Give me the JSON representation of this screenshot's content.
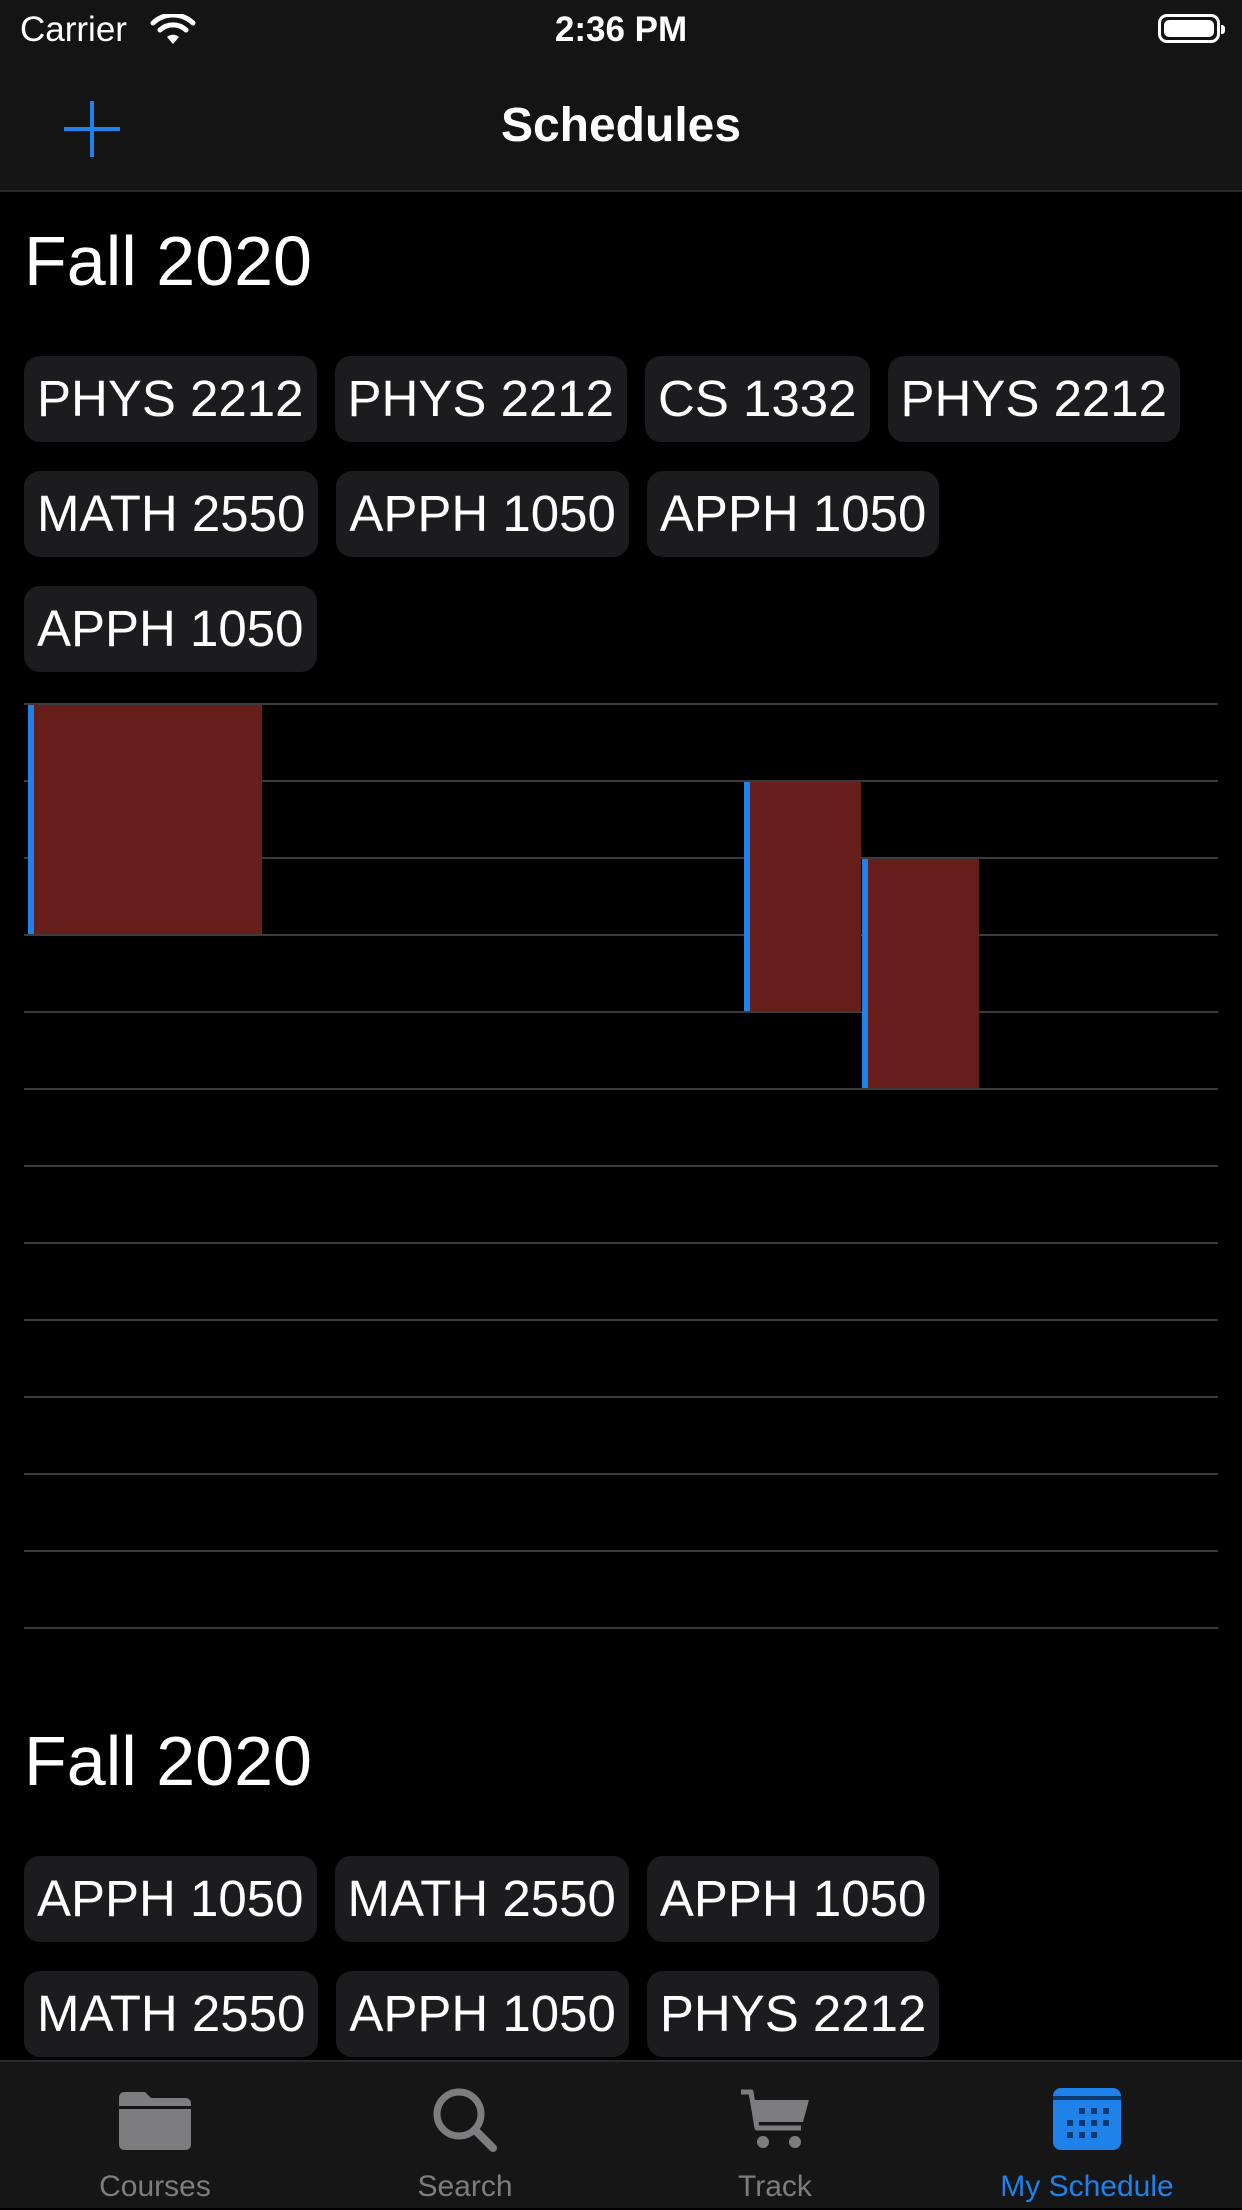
{
  "status_bar": {
    "carrier": "Carrier",
    "time": "2:36 PM"
  },
  "nav": {
    "title": "Schedules",
    "add_icon": "plus-icon"
  },
  "schedules": [
    {
      "title": "Fall 2020",
      "courses": [
        "PHYS 2212",
        "PHYS 2212",
        "CS 1332",
        "PHYS 2212",
        "MATH 2550",
        "APPH 1050",
        "APPH 1050",
        "APPH 1050"
      ]
    },
    {
      "title": "Fall 2020",
      "courses": [
        "APPH 1050",
        "MATH 2550",
        "APPH 1050",
        "MATH 2550",
        "APPH 1050",
        "PHYS 2212"
      ]
    }
  ],
  "tabs": [
    {
      "label": "Courses",
      "icon": "folder-icon",
      "active": false
    },
    {
      "label": "Search",
      "icon": "search-icon",
      "active": false
    },
    {
      "label": "Track",
      "icon": "cart-icon",
      "active": false
    },
    {
      "label": "My Schedule",
      "icon": "calendar-icon",
      "active": true
    }
  ],
  "colors": {
    "accent": "#1e82ea",
    "block": "#651e1a",
    "chip_bg": "#1c1c1e",
    "background": "#000000",
    "bar_bg": "#141414"
  }
}
